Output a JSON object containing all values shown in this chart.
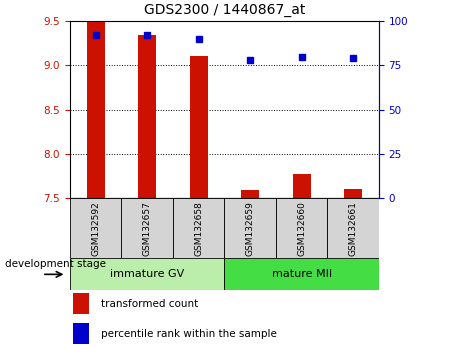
{
  "title": "GDS2300 / 1440867_at",
  "categories": [
    "GSM132592",
    "GSM132657",
    "GSM132658",
    "GSM132659",
    "GSM132660",
    "GSM132661"
  ],
  "red_values": [
    9.49,
    9.35,
    9.11,
    7.59,
    7.77,
    7.61
  ],
  "blue_values_pct": [
    92,
    92,
    90,
    78,
    80,
    79
  ],
  "ylim_left": [
    7.5,
    9.5
  ],
  "ylim_right": [
    0,
    100
  ],
  "yticks_left": [
    7.5,
    8.0,
    8.5,
    9.0,
    9.5
  ],
  "yticks_right": [
    0,
    25,
    50,
    75,
    100
  ],
  "bar_bottom": 7.5,
  "bar_color": "#cc1100",
  "dot_color": "#0000cc",
  "grid_color": "#000000",
  "xlabel_area_color_immature": "#bbeeaa",
  "xlabel_area_color_mature": "#44dd44",
  "group_label_immature": "immature GV",
  "group_label_mature": "mature MII",
  "legend_red_label": "transformed count",
  "legend_blue_label": "percentile rank within the sample",
  "dev_stage_label": "development stage",
  "title_fontsize": 10,
  "tick_fontsize": 7.5,
  "bar_width": 0.35,
  "sample_label_fontsize": 6.5,
  "group_label_fontsize": 8,
  "legend_fontsize": 7.5
}
